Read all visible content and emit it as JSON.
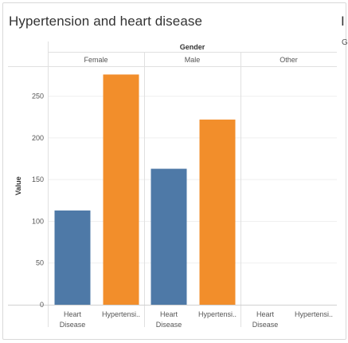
{
  "page": {
    "title": "Hypertension and heart disease",
    "clipped_title_fragment": "I",
    "clipped_subtitle_fragment": "G"
  },
  "colors": {
    "heart_disease": "#4e79a7",
    "hypertension": "#f28e2b",
    "gridline": "#efefef",
    "divider": "#e0e0e0",
    "text": "#555555"
  },
  "chart_data": {
    "type": "bar",
    "column_header": "Gender",
    "ylabel": "Value",
    "ylim": [
      0,
      285
    ],
    "yticks": [
      0,
      50,
      100,
      150,
      200,
      250
    ],
    "grid": true,
    "panes": [
      {
        "name": "Female",
        "categories": [
          "Heart\nDisease",
          "Hypertensi.."
        ],
        "values": [
          113,
          276
        ]
      },
      {
        "name": "Male",
        "categories": [
          "Heart\nDisease",
          "Hypertensi.."
        ],
        "values": [
          163,
          222
        ]
      },
      {
        "name": "Other",
        "categories": [
          "Heart\nDisease",
          "Hypertensi.."
        ],
        "values": [
          0,
          0
        ]
      }
    ]
  }
}
